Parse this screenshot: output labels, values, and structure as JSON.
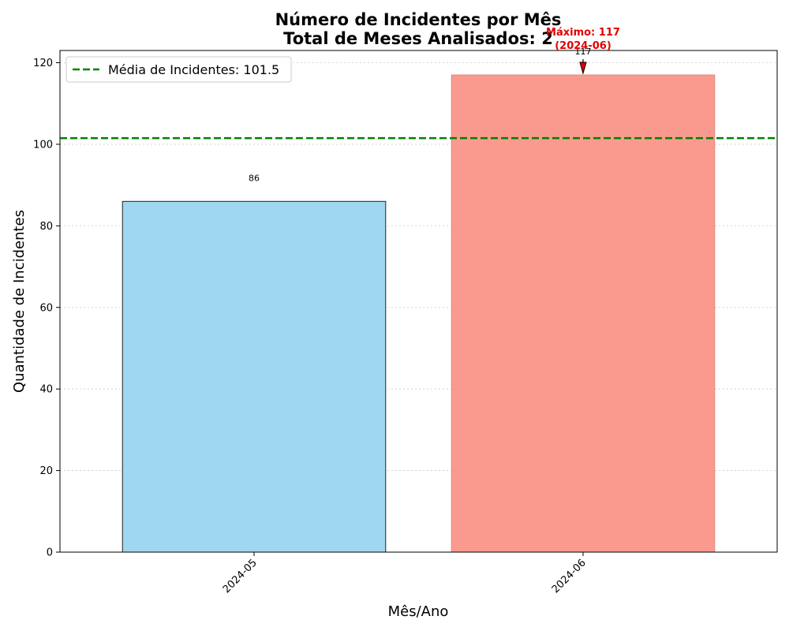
{
  "chart_data": {
    "type": "bar",
    "title": "Número de Incidentes por Mês",
    "subtitle": "Total de Meses Analisados: 2",
    "xlabel": "Mês/Ano",
    "ylabel": "Quantidade de Incidentes",
    "categories": [
      "2024-05",
      "2024-06"
    ],
    "values": [
      86,
      117
    ],
    "value_labels": [
      "86",
      "117"
    ],
    "bar_colors": [
      "#9fd6f0",
      "#fa9a8f"
    ],
    "ylim": [
      0,
      123
    ],
    "yticks": [
      0,
      20,
      40,
      60,
      80,
      100,
      120
    ],
    "ytick_labels": [
      "0",
      "20",
      "40",
      "60",
      "80",
      "100",
      "120"
    ],
    "grid": "y-dotted",
    "mean_line": {
      "value": 101.5,
      "label": "Média de Incidentes: 101.5",
      "color": "#008000",
      "style": "dashed"
    },
    "legend_position": "top-left",
    "annotation": {
      "category": "2024-06",
      "value": 117,
      "lines": [
        "Máximo: 117",
        "(2024-06)"
      ],
      "color": "#e00000"
    }
  }
}
